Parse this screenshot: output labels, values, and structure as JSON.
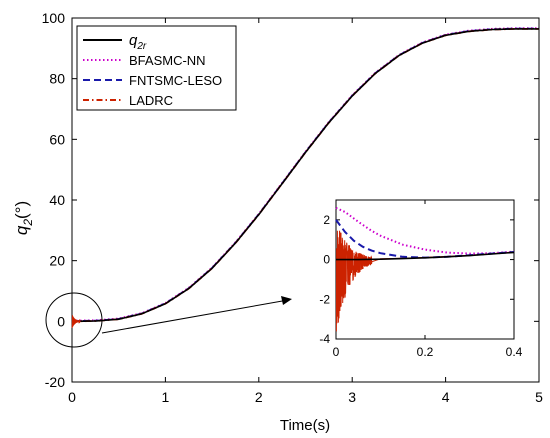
{
  "chart_data": {
    "type": "line",
    "xlabel": "Time(s)",
    "ylabel": {
      "base": "q",
      "sub": "2",
      "unit": "(°)"
    },
    "xlim": [
      0,
      5
    ],
    "ylim": [
      -20,
      100
    ],
    "xticks": [
      0,
      1,
      2,
      3,
      4,
      5
    ],
    "yticks": [
      -20,
      0,
      20,
      40,
      60,
      80,
      100
    ],
    "grid": false,
    "legend_placement": "top-left",
    "series": [
      {
        "name": "q2r",
        "label": {
          "base": "q",
          "sub": "2r"
        },
        "color": "#000000",
        "style": "solid"
      },
      {
        "name": "BFASMC-NN",
        "label": {
          "base": "BFASMC-NN",
          "sub": ""
        },
        "color": "#cc00cc",
        "style": "dotted"
      },
      {
        "name": "FNTSMC-LESO",
        "label": {
          "base": "FNTSMC-LESO",
          "sub": ""
        },
        "color": "#1a1aaa",
        "style": "dashed"
      },
      {
        "name": "LADRC",
        "label": {
          "base": "LADRC",
          "sub": ""
        },
        "color": "#cc2200",
        "style": "dashdot"
      }
    ],
    "reference": {
      "x": [
        0,
        0.25,
        0.5,
        0.75,
        1.0,
        1.25,
        1.5,
        1.75,
        2.0,
        2.25,
        2.5,
        2.75,
        3.0,
        3.25,
        3.5,
        3.75,
        4.0,
        4.25,
        4.5,
        4.75,
        5.0
      ],
      "y": [
        0,
        0.1,
        0.7,
        2.5,
        5.8,
        10.8,
        17.5,
        25.8,
        35.2,
        45.4,
        55.7,
        65.5,
        74.3,
        81.8,
        87.6,
        91.7,
        94.3,
        95.6,
        96.2,
        96.4,
        96.4
      ]
    },
    "inset": {
      "xlim": [
        0,
        0.4
      ],
      "ylim": [
        -4,
        3
      ],
      "xticks": [
        0,
        0.2,
        0.4
      ],
      "yticks": [
        -4,
        -2,
        0,
        2
      ],
      "BFASMC-NN": {
        "x": [
          0,
          0.02,
          0.05,
          0.08,
          0.1,
          0.15,
          0.2,
          0.25,
          0.3,
          0.35,
          0.4
        ],
        "y": [
          2.6,
          2.4,
          1.9,
          1.45,
          1.2,
          0.75,
          0.5,
          0.35,
          0.3,
          0.32,
          0.4
        ]
      },
      "FNTSMC-LESO": {
        "x": [
          0,
          0.02,
          0.04,
          0.06,
          0.08,
          0.1,
          0.15,
          0.2,
          0.25,
          0.3,
          0.35,
          0.4
        ],
        "y": [
          2.0,
          1.4,
          0.95,
          0.65,
          0.45,
          0.32,
          0.14,
          0.1,
          0.14,
          0.22,
          0.3,
          0.38
        ]
      },
      "q2r": {
        "x": [
          0,
          0.05,
          0.1,
          0.15,
          0.2,
          0.25,
          0.3,
          0.35,
          0.4
        ],
        "y": [
          0,
          0,
          0.02,
          0.05,
          0.09,
          0.14,
          0.2,
          0.28,
          0.36
        ]
      },
      "LADRC_noise_until": 0.08,
      "LADRC_noise_envelope": [
        -3.8,
        2.0
      ]
    }
  }
}
